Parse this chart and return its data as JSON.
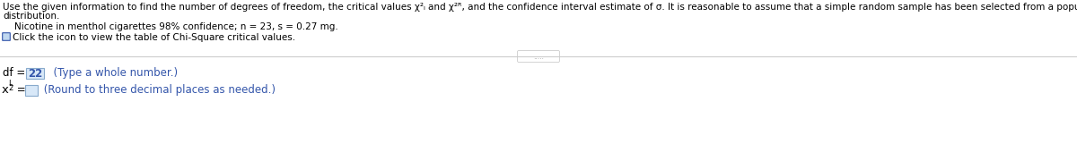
{
  "bg_color": "#ffffff",
  "line1": "Use the given information to find the number of degrees of freedom, the critical values χ²ₗ and χ²ᴿ, and the confidence interval estimate of σ. It is reasonable to assume that a simple random sample has been selected from a population with a normal",
  "line2": "distribution.",
  "indent_line": "    Nicotine in menthol cigarettes 98% confidence; n = 23, s = 0.27 mg.",
  "click_line": "Click the icon to view the table of Chi-Square critical values.",
  "separator_dots": ".....",
  "df_value": "22",
  "df_hint": "  (Type a whole number.)",
  "chi_hint": " (Round to three decimal places as needed.)",
  "text_color_black": "#000000",
  "text_color_blue": "#3355aa",
  "text_color_gray": "#999999",
  "box_color": "#d8e8f8",
  "box_border": "#88aacc",
  "separator_color": "#cccccc",
  "icon_face": "#c0d8f0",
  "icon_edge": "#3355aa",
  "font_size_main": 7.5,
  "font_size_bottom": 8.5,
  "font_size_small": 6.0
}
